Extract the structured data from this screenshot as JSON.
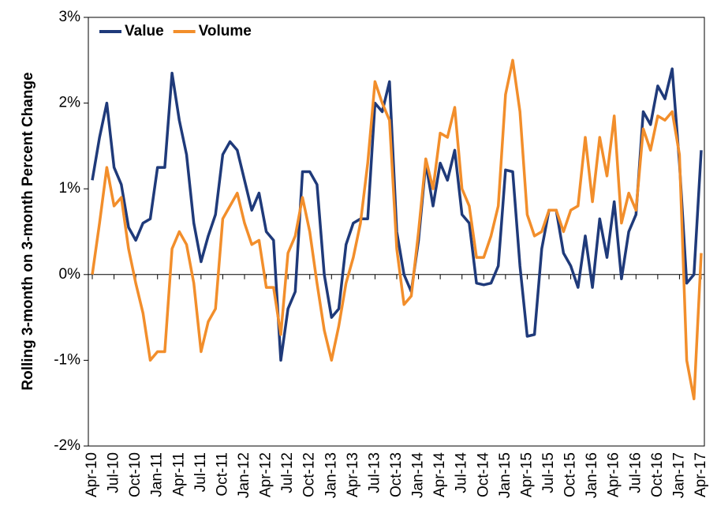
{
  "chart_data": {
    "type": "line",
    "y_label": "Rolling 3-month on 3-month Percent Change",
    "categories": [
      "Apr-10",
      null,
      null,
      "Jul-10",
      null,
      null,
      "Oct-10",
      null,
      null,
      "Jan-11",
      null,
      null,
      "Apr-11",
      null,
      null,
      "Jul-11",
      null,
      null,
      "Oct-11",
      null,
      null,
      "Jan-12",
      null,
      null,
      "Apr-12",
      null,
      null,
      "Jul-12",
      null,
      null,
      "Oct-12",
      null,
      null,
      "Jan-13",
      null,
      null,
      "Apr-13",
      null,
      null,
      "Jul-13",
      null,
      null,
      "Oct-13",
      null,
      null,
      "Jan-14",
      null,
      null,
      "Apr-14",
      null,
      null,
      "Jul-14",
      null,
      null,
      "Oct-14",
      null,
      null,
      "Jan-15",
      null,
      null,
      "Apr-15",
      null,
      null,
      "Jul-15",
      null,
      null,
      "Oct-15",
      null,
      null,
      "Jan-16",
      null,
      null,
      "Apr-16",
      null,
      null,
      "Jul-16",
      null,
      null,
      "Oct-16",
      null,
      null,
      "Jan-17",
      null,
      null,
      "Apr-17"
    ],
    "series": [
      {
        "name": "Value",
        "color": "#1f3a7a",
        "values": [
          1.1,
          1.6,
          2.0,
          1.25,
          1.05,
          0.55,
          0.4,
          0.6,
          0.65,
          1.25,
          1.25,
          2.35,
          1.8,
          1.4,
          0.6,
          0.15,
          0.45,
          0.7,
          1.4,
          1.55,
          1.45,
          1.1,
          0.75,
          0.95,
          0.5,
          0.4,
          -1.0,
          -0.4,
          -0.2,
          1.2,
          1.2,
          1.05,
          0.0,
          -0.5,
          -0.4,
          0.35,
          0.6,
          0.65,
          0.65,
          2.0,
          1.9,
          2.25,
          0.5,
          0.0,
          -0.2,
          0.4,
          1.3,
          0.8,
          1.3,
          1.1,
          1.45,
          0.7,
          0.6,
          -0.1,
          -0.12,
          -0.1,
          0.1,
          1.22,
          1.2,
          0.1,
          -0.72,
          -0.7,
          0.3,
          0.75,
          0.75,
          0.25,
          0.1,
          -0.15,
          0.45,
          -0.15,
          0.65,
          0.2,
          0.85,
          -0.05,
          0.5,
          0.7,
          1.9,
          1.75,
          2.2,
          2.05,
          2.4,
          1.3,
          -0.1,
          0.0,
          1.45
        ]
      },
      {
        "name": "Volume",
        "color": "#f28e2b",
        "values": [
          0.0,
          0.6,
          1.25,
          0.8,
          0.9,
          0.3,
          -0.1,
          -0.45,
          -1.0,
          -0.9,
          -0.9,
          0.3,
          0.5,
          0.35,
          -0.1,
          -0.9,
          -0.55,
          -0.4,
          0.65,
          0.8,
          0.95,
          0.6,
          0.35,
          0.4,
          -0.15,
          -0.15,
          -0.7,
          0.25,
          0.45,
          0.9,
          0.5,
          -0.1,
          -0.65,
          -1.0,
          -0.6,
          -0.1,
          0.2,
          0.6,
          1.3,
          2.25,
          2.0,
          1.8,
          0.3,
          -0.35,
          -0.25,
          0.5,
          1.35,
          1.0,
          1.65,
          1.6,
          1.95,
          1.0,
          0.8,
          0.2,
          0.2,
          0.45,
          0.8,
          2.1,
          2.5,
          1.9,
          0.7,
          0.45,
          0.5,
          0.75,
          0.75,
          0.5,
          0.75,
          0.8,
          1.6,
          0.85,
          1.6,
          1.15,
          1.85,
          0.6,
          0.95,
          0.75,
          1.7,
          1.45,
          1.85,
          1.8,
          1.9,
          1.4,
          -1.0,
          -1.45,
          0.25
        ]
      }
    ],
    "ylim": [
      -2,
      3
    ],
    "yticks": [
      {
        "value": -2,
        "label": "-2%"
      },
      {
        "value": -1,
        "label": "-1%"
      },
      {
        "value": 0,
        "label": "0%"
      },
      {
        "value": 1,
        "label": "1%"
      },
      {
        "value": 2,
        "label": "2%"
      },
      {
        "value": 3,
        "label": "3%"
      }
    ],
    "grid": false,
    "legend": "top-left"
  }
}
